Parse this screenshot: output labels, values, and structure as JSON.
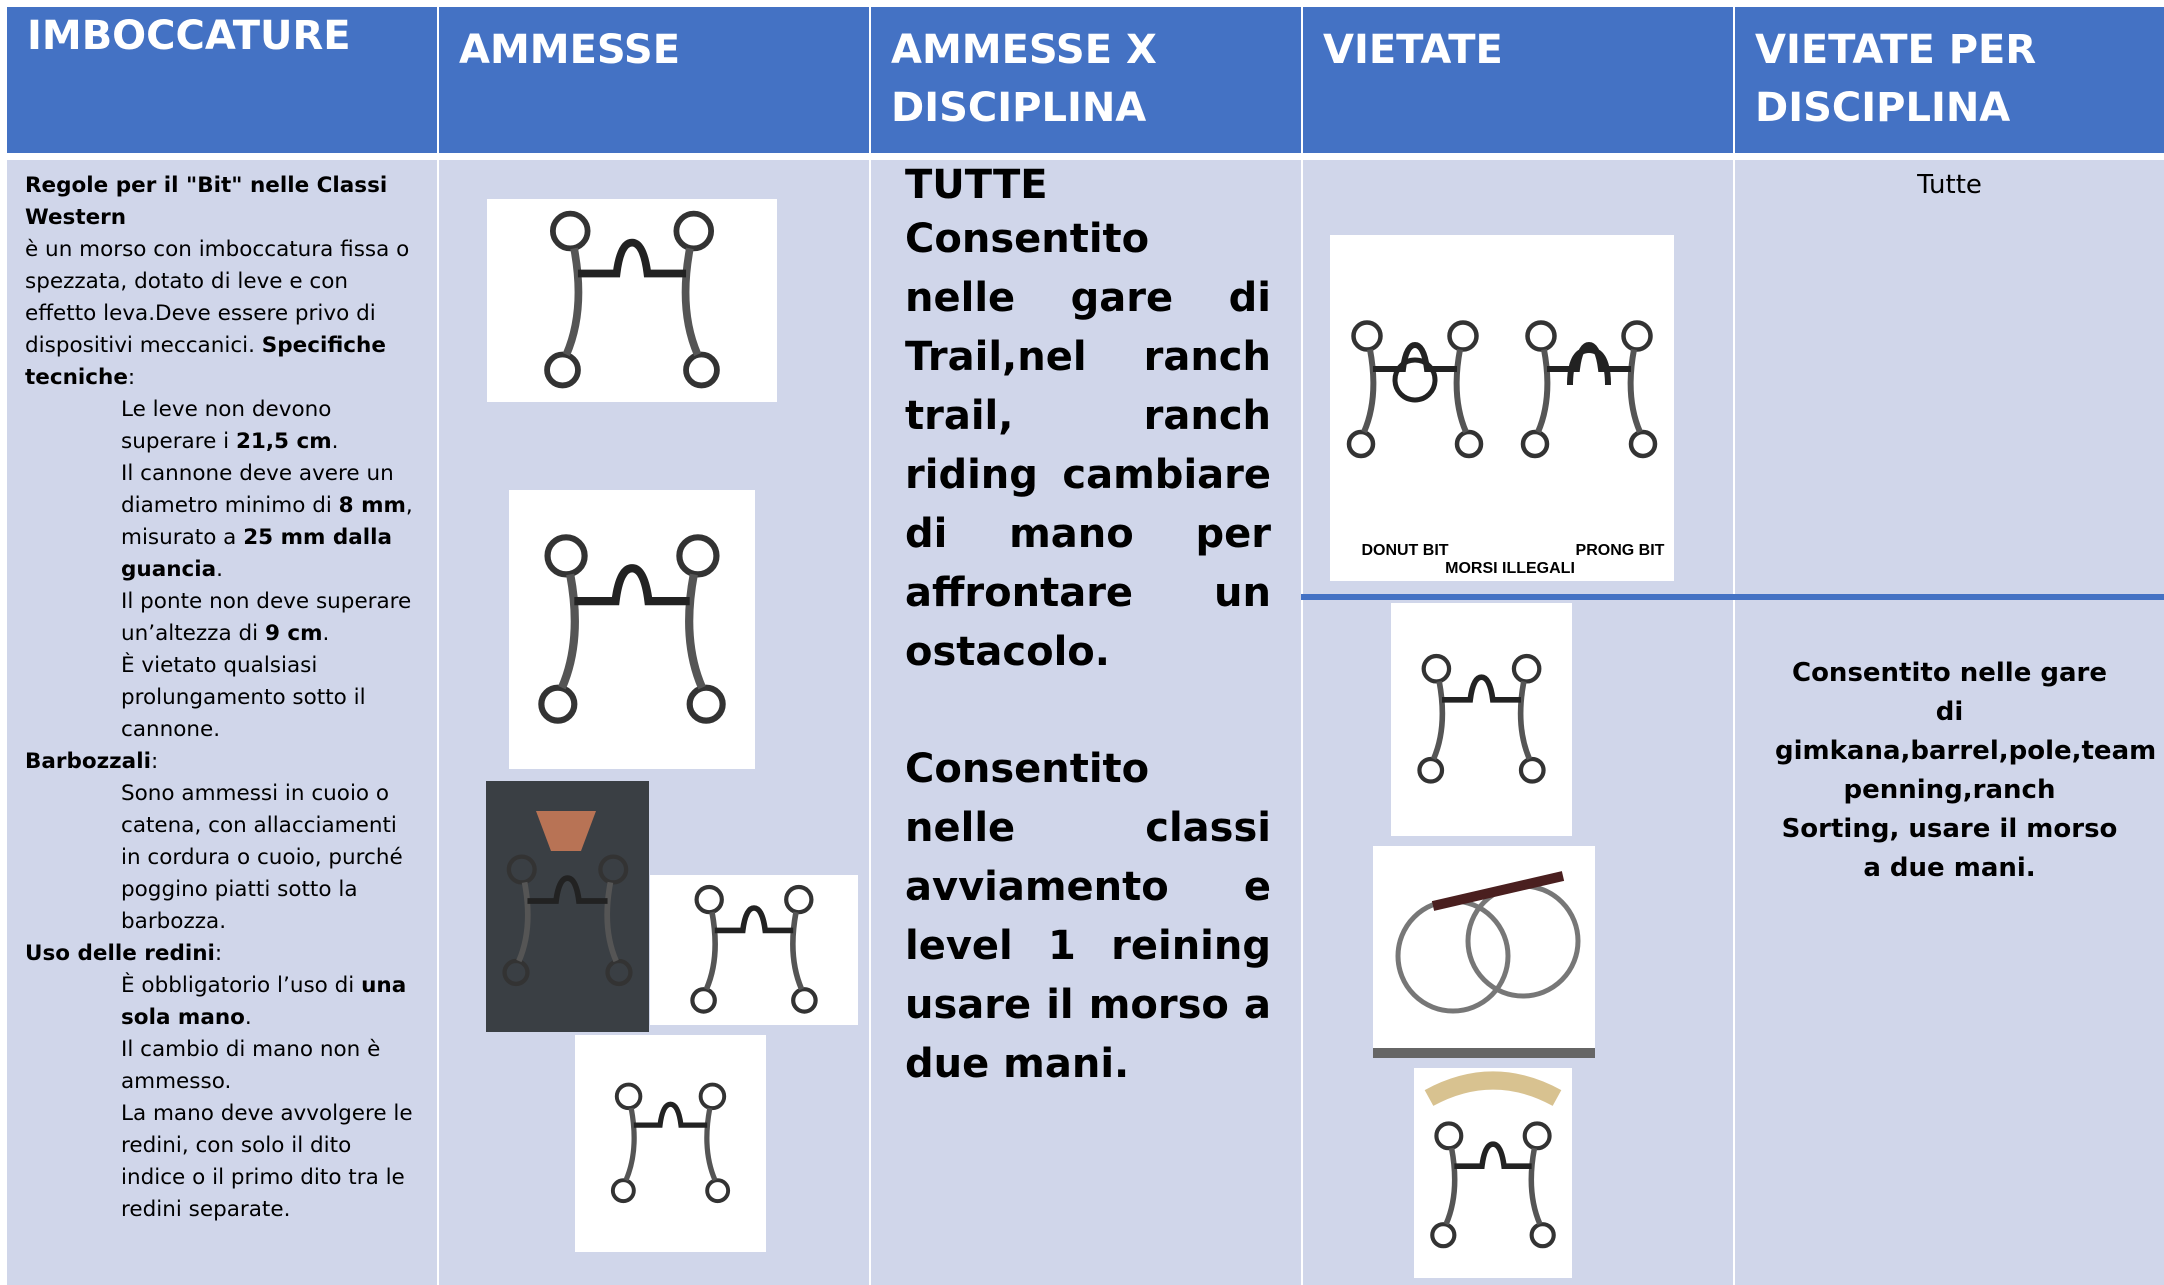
{
  "table": {
    "headers": [
      "IMBOCCATURE",
      "AMMESSE",
      "AMMESSE X DISCIPLINA",
      "VIETATE",
      "VIETATE PER DISCIPLINA"
    ],
    "rules": {
      "title": "Regole per il \"Bit\" nelle Classi Western",
      "intro": [
        "è un morso con imboccatura fissa o spezzata, dotato di leve e con effetto leva.Deve essere privo di dispositivi meccanici. ",
        "Specifiche tecniche",
        ":"
      ],
      "sections": [
        {
          "items": [
            [
              "Le leve non devono superare i ",
              "21,5 cm",
              "."
            ],
            [
              "Il cannone deve avere un diametro minimo di ",
              "8 mm",
              ", misurato a ",
              "25 mm dalla guancia",
              "."
            ],
            [
              "Il ponte non deve superare un’altezza di ",
              "9 cm",
              "."
            ],
            [
              "È vietato qualsiasi prolungamento sotto il cannone."
            ]
          ]
        },
        {
          "heading": [
            "",
            "Barbozzali",
            ":"
          ],
          "items": [
            [
              "Sono ammessi in cuoio o catena, con allacciamenti in cordura o cuoio, purché poggino piatti sotto la barbozza."
            ]
          ]
        },
        {
          "heading": [
            "",
            "Uso delle redini",
            ":"
          ],
          "items": [
            [
              "È obbligatorio l’uso di ",
              "una sola mano",
              "."
            ],
            [
              "Il cambio di mano non è ammesso."
            ],
            [
              "La mano deve avvolgere le redini, con solo il dito indice o il primo dito tra le redini separate."
            ]
          ]
        }
      ]
    },
    "disciplina": {
      "title": "TUTTE",
      "paragraphs": [
        "Consentito nelle gare di Trail,nel ranch trail, ranch riding cambiare di mano per affrontare un ostacolo.",
        "Consentito nelle classi avviamento e level 1 reining usare il morso a due mani."
      ]
    },
    "vietate_image": {
      "left": "DONUT BIT",
      "right": "PRONG BIT",
      "caption": "MORSI ILLEGALI"
    },
    "vietate_disciplina": {
      "top": "Tutte",
      "bottom": [
        "Consentito nelle gare di gimkana,barrel,pole,team penning,ranch",
        "Sorting, usare il morso a due mani."
      ]
    }
  }
}
